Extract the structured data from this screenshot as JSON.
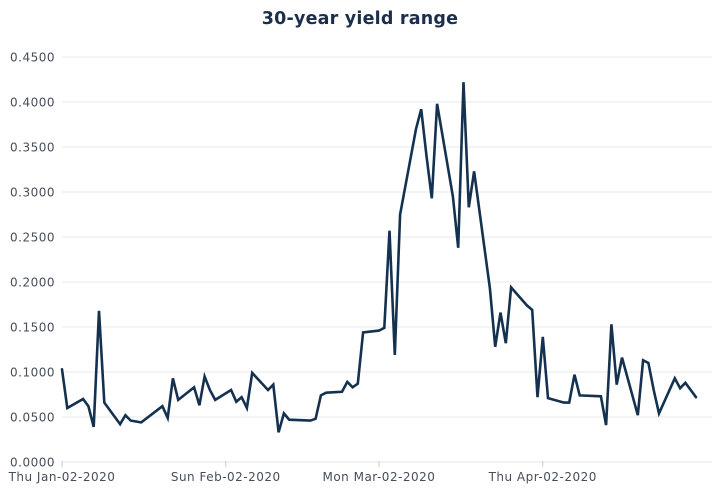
{
  "chart_data": {
    "type": "line",
    "title": "30-year yield range",
    "xlabel": "",
    "ylabel": "",
    "ylim": [
      0.0,
      0.45
    ],
    "grid": "horizontal",
    "legend": "none",
    "colors": {
      "line": "#14324f",
      "title": "#1b2e4b",
      "labels": "#474e5a",
      "gridline": "#e9eaec",
      "axis": "#e3e5e8",
      "tick": "#c7cbd0",
      "background": "#ffffff"
    },
    "yticks": [
      {
        "label": "0.0000",
        "value": 0.0
      },
      {
        "label": "0.0500",
        "value": 0.05
      },
      {
        "label": "0.1000",
        "value": 0.1
      },
      {
        "label": "0.1500",
        "value": 0.15
      },
      {
        "label": "0.2000",
        "value": 0.2
      },
      {
        "label": "0.2500",
        "value": 0.25
      },
      {
        "label": "0.3000",
        "value": 0.3
      },
      {
        "label": "0.3500",
        "value": 0.35
      },
      {
        "label": "0.4000",
        "value": 0.4
      },
      {
        "label": "0.4500",
        "value": 0.45
      }
    ],
    "xticks": [
      {
        "label": "Thu Jan-02-2020",
        "date": "2020-01-02"
      },
      {
        "label": "Sun Feb-02-2020",
        "date": "2020-02-02"
      },
      {
        "label": "Mon Mar-02-2020",
        "date": "2020-03-02"
      },
      {
        "label": "Thu Apr-02-2020",
        "date": "2020-04-02"
      }
    ],
    "series": [
      {
        "name": "30-year yield range",
        "x": [
          "2020-01-02",
          "2020-01-03",
          "2020-01-06",
          "2020-01-07",
          "2020-01-08",
          "2020-01-09",
          "2020-01-10",
          "2020-01-13",
          "2020-01-14",
          "2020-01-15",
          "2020-01-16",
          "2020-01-17",
          "2020-01-21",
          "2020-01-22",
          "2020-01-23",
          "2020-01-24",
          "2020-01-27",
          "2020-01-28",
          "2020-01-29",
          "2020-01-30",
          "2020-01-31",
          "2020-02-03",
          "2020-02-04",
          "2020-02-05",
          "2020-02-06",
          "2020-02-07",
          "2020-02-10",
          "2020-02-11",
          "2020-02-12",
          "2020-02-13",
          "2020-02-14",
          "2020-02-18",
          "2020-02-19",
          "2020-02-20",
          "2020-02-21",
          "2020-02-24",
          "2020-02-25",
          "2020-02-26",
          "2020-02-27",
          "2020-02-28",
          "2020-03-02",
          "2020-03-03",
          "2020-03-04",
          "2020-03-05",
          "2020-03-06",
          "2020-03-09",
          "2020-03-10",
          "2020-03-11",
          "2020-03-12",
          "2020-03-13",
          "2020-03-16",
          "2020-03-17",
          "2020-03-18",
          "2020-03-19",
          "2020-03-20",
          "2020-03-23",
          "2020-03-24",
          "2020-03-25",
          "2020-03-26",
          "2020-03-27",
          "2020-03-30",
          "2020-03-31",
          "2020-04-01",
          "2020-04-02",
          "2020-04-03",
          "2020-04-06",
          "2020-04-07",
          "2020-04-08",
          "2020-04-09",
          "2020-04-13",
          "2020-04-14",
          "2020-04-15",
          "2020-04-16",
          "2020-04-17",
          "2020-04-20",
          "2020-04-21",
          "2020-04-22",
          "2020-04-23",
          "2020-04-24",
          "2020-04-27",
          "2020-04-28",
          "2020-04-29",
          "2020-04-30",
          "2020-05-01"
        ],
        "values": [
          0.103,
          0.06,
          0.07,
          0.062,
          0.039,
          0.168,
          0.066,
          0.042,
          0.052,
          0.046,
          0.045,
          0.044,
          0.062,
          0.049,
          0.093,
          0.069,
          0.083,
          0.063,
          0.095,
          0.08,
          0.069,
          0.08,
          0.067,
          0.072,
          0.06,
          0.099,
          0.08,
          0.086,
          0.033,
          0.054,
          0.047,
          0.046,
          0.048,
          0.074,
          0.077,
          0.078,
          0.089,
          0.083,
          0.087,
          0.144,
          0.146,
          0.149,
          0.257,
          0.119,
          0.275,
          0.37,
          0.392,
          0.34,
          0.293,
          0.398,
          0.295,
          0.238,
          0.422,
          0.283,
          0.323,
          0.193,
          0.128,
          0.166,
          0.132,
          0.194,
          0.174,
          0.169,
          0.072,
          0.139,
          0.071,
          0.066,
          0.066,
          0.097,
          0.074,
          0.073,
          0.041,
          0.153,
          0.086,
          0.116,
          0.052,
          0.113,
          0.11,
          0.08,
          0.054,
          0.093,
          0.082,
          0.088,
          0.08,
          0.072
        ]
      }
    ]
  }
}
